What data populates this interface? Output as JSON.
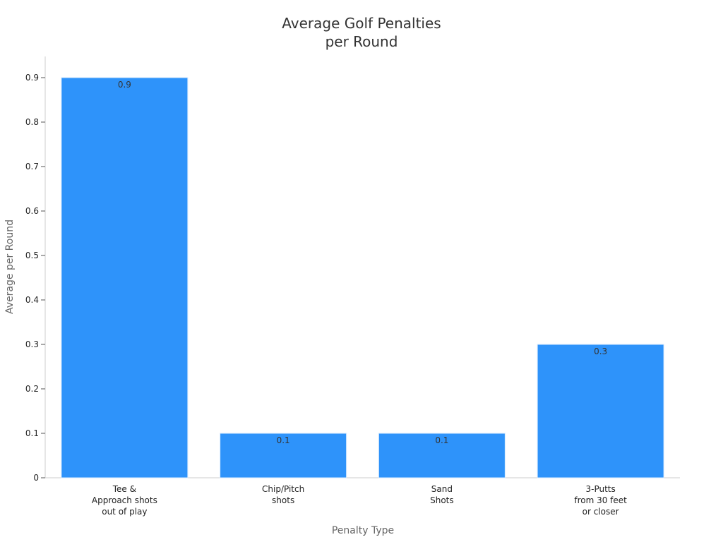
{
  "chart_data": {
    "type": "bar",
    "title": [
      "Average Golf Penalties",
      "per Round"
    ],
    "xlabel": "Penalty Type",
    "ylabel": "Average per Round",
    "categories": [
      [
        "Tee &",
        "Approach shots",
        "out of play"
      ],
      [
        "Chip/Pitch",
        "shots"
      ],
      [
        "Sand",
        "Shots"
      ],
      [
        "3-Putts",
        "from 30 feet",
        "or closer"
      ]
    ],
    "values": [
      0.9,
      0.1,
      0.1,
      0.3
    ],
    "data_labels": [
      "0.9",
      "0.1",
      "0.1",
      "0.3"
    ],
    "ylim": [
      0,
      0.95
    ],
    "yticks": [
      0,
      0.1,
      0.2,
      0.3,
      0.4,
      0.5,
      0.6,
      0.7,
      0.8,
      0.9
    ],
    "ytick_labels": [
      "0",
      "0.1",
      "0.2",
      "0.3",
      "0.4",
      "0.5",
      "0.6",
      "0.7",
      "0.8",
      "0.9"
    ],
    "grid": false,
    "bar_color": "#2E93FA"
  }
}
